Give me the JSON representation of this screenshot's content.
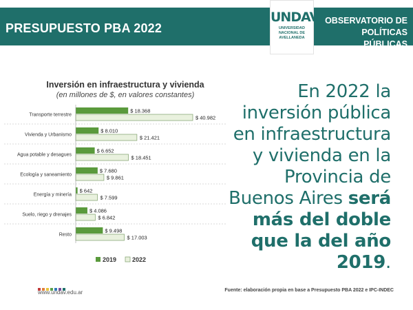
{
  "header": {
    "title": "PRESUPUESTO PBA 2022",
    "logo_text": "UNDAV",
    "logo_sub": [
      "UNIVERSIDAD",
      "NACIONAL DE",
      "AVELLANEDA"
    ],
    "observatory_line1": "OBSERVATORIO DE",
    "observatory_line2": "POLÍTICAS PÚBLICAS",
    "bar_color": "#1f6f6a"
  },
  "headline": {
    "normal": "En 2022 la inversión pública en infraestructura y vivienda en la Provincia de Buenos Aires ",
    "bold": "será más del doble que la del año 2019",
    "end": "."
  },
  "footer": {
    "url": "www.undav.edu.ar",
    "dot_colors": [
      "#c23b3b",
      "#e0803a",
      "#e8c43a",
      "#5aa04a",
      "#2f7ab8",
      "#7b4c9c",
      "#1f6f6a"
    ],
    "source": "Fuente: elaboración propia en base a Presupuesto PBA 2022 e IPC-INDEC"
  },
  "chart_data": {
    "type": "bar",
    "orientation": "horizontal",
    "title": "Inversión en infraestructura y vivienda",
    "subtitle": "(en millones de $, en valores constantes)",
    "categories": [
      "Transporte terrestre",
      "Vivienda y Urbanismo",
      "Agua potable y desagues",
      "Ecología y saneamiento",
      "Energía y minería",
      "Suelo, riego y drenajes",
      "Resto"
    ],
    "series": [
      {
        "name": "2019",
        "color": "#5a9a3c",
        "values": [
          18368,
          8010,
          6652,
          7680,
          642,
          4086,
          9498
        ],
        "labels": [
          "$ 18.368",
          "$ 8.010",
          "$ 6.652",
          "$ 7.680",
          "$ 642",
          "$ 4.086",
          "$ 9.498"
        ]
      },
      {
        "name": "2022",
        "color": "#e9f1de",
        "stroke": "#8aa878",
        "values": [
          40982,
          21421,
          18451,
          9861,
          7599,
          6842,
          17003
        ],
        "labels": [
          "$ 40.982",
          "$ 21.421",
          "$ 18.451",
          "$ 9.861",
          "$ 7.599",
          "$ 6.842",
          "$ 17.003"
        ]
      }
    ],
    "xlim": [
      0,
      40982
    ],
    "grid": false,
    "legend_placement": "bottom"
  }
}
